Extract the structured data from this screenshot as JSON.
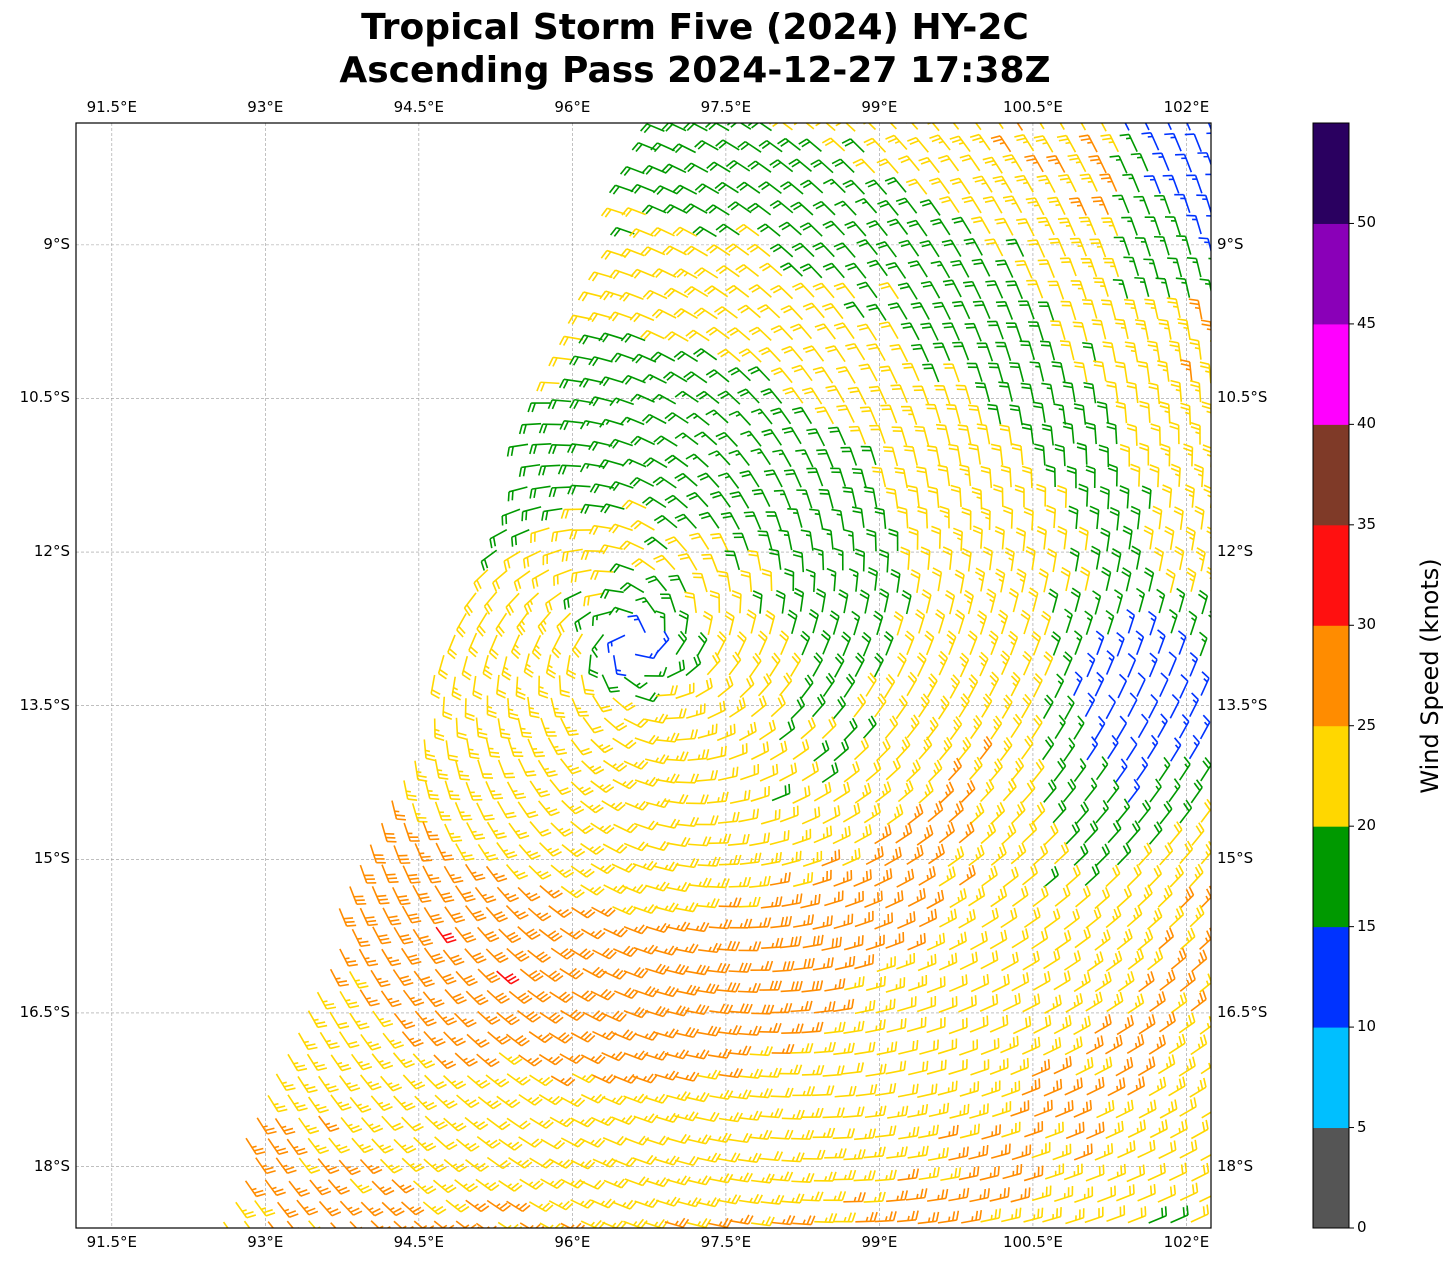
{
  "title_line1": "Tropical Storm Five (2024) HY-2C",
  "title_line2": "Ascending Pass 2024-12-27 17:38Z",
  "chart_data": {
    "type": "wind-barb-map",
    "title": "Tropical Storm Five (2024) HY-2C Ascending Pass 2024-12-27 17:38Z",
    "lon_ticks": [
      91.5,
      93,
      94.5,
      96,
      97.5,
      99,
      100.5,
      102
    ],
    "lon_labels": [
      "91.5°E",
      "93°E",
      "94.5°E",
      "96°E",
      "97.5°E",
      "99°E",
      "100.5°E",
      "102°E"
    ],
    "lat_ticks": [
      9,
      10.5,
      12,
      13.5,
      15,
      16.5,
      18
    ],
    "lat_labels": [
      "9°S",
      "10.5°S",
      "12°S",
      "13.5°S",
      "15°S",
      "16.5°S",
      "18°S"
    ],
    "lon_range": [
      91.15,
      102.24
    ],
    "lat_range": [
      -18.6,
      -7.81
    ],
    "grid": true,
    "colorbar": {
      "label": "Wind Speed (knots)",
      "ticks": [
        0,
        5,
        10,
        15,
        20,
        25,
        30,
        35,
        40,
        45,
        50
      ],
      "range": [
        0,
        55
      ],
      "colors": [
        "#555555",
        "#00bfff",
        "#0033ff",
        "#009900",
        "#ffd700",
        "#ff8c00",
        "#ff1010",
        "#7f3a28",
        "#ff00ff",
        "#8a00b8",
        "#2a0060"
      ]
    },
    "storm_center": {
      "lon": 96.6,
      "lat": -12.9
    }
  }
}
